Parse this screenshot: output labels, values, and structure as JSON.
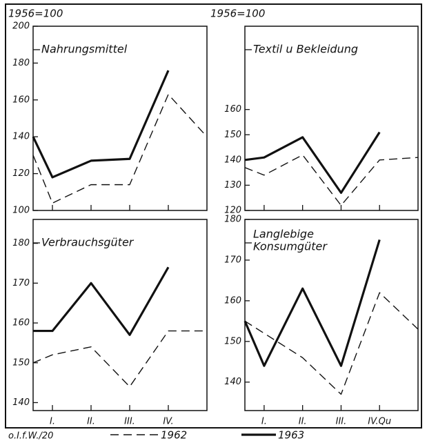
{
  "annotations": [
    "1956=100",
    "1956=100"
  ],
  "source": "o.I.f.W./20",
  "chart_data": [
    {
      "type": "line",
      "title": "Nahrungsmittel",
      "x": [
        0.5,
        1,
        2,
        3,
        4,
        5
      ],
      "xlim": [
        0.5,
        5
      ],
      "xticks": [
        1,
        2,
        3,
        4
      ],
      "ylim": [
        100,
        200
      ],
      "yticks": [
        100,
        120,
        140,
        160,
        180,
        200
      ],
      "series": [
        {
          "name": "1962",
          "color": "#111111",
          "values": [
            130,
            104,
            114,
            114,
            163,
            140
          ]
        },
        {
          "name": "1963",
          "color": "#111111",
          "values": [
            140,
            118,
            127,
            128,
            176,
            null
          ]
        }
      ]
    },
    {
      "type": "line",
      "title": "Textil u Bekleidung",
      "x": [
        0.5,
        1,
        2,
        3,
        4,
        5
      ],
      "xlim": [
        0.5,
        5
      ],
      "xticks": [
        1,
        2,
        3,
        4
      ],
      "ylim": [
        120,
        193
      ],
      "yticks": [
        120,
        130,
        140,
        150,
        160
      ],
      "series": [
        {
          "name": "1962",
          "color": "#111111",
          "values": [
            137,
            134,
            142,
            122,
            140,
            141
          ]
        },
        {
          "name": "1963",
          "color": "#111111",
          "values": [
            140,
            141,
            149,
            127,
            151,
            null
          ]
        }
      ]
    },
    {
      "type": "line",
      "title": "Verbrauchsgüter",
      "x": [
        0.5,
        1,
        2,
        3,
        4,
        5
      ],
      "xlim": [
        0.5,
        5
      ],
      "xticks": [
        {
          "value": 1,
          "label": "I."
        },
        {
          "value": 2,
          "label": "II."
        },
        {
          "value": 3,
          "label": "III."
        },
        {
          "value": 4,
          "label": "IV."
        }
      ],
      "ylim": [
        138,
        186
      ],
      "yticks": [
        140,
        150,
        160,
        170,
        180
      ],
      "series": [
        {
          "name": "1962",
          "color": "#111111",
          "values": [
            150,
            152,
            154,
            144,
            158,
            158
          ]
        },
        {
          "name": "1963",
          "color": "#111111",
          "values": [
            158,
            158,
            170,
            157,
            174,
            null
          ]
        }
      ]
    },
    {
      "type": "line",
      "title": [
        "Langlebige",
        "Konsumgüter"
      ],
      "x": [
        0.5,
        1,
        2,
        3,
        4,
        5
      ],
      "xlim": [
        0.5,
        5
      ],
      "xticks": [
        {
          "value": 1,
          "label": "I."
        },
        {
          "value": 2,
          "label": "II."
        },
        {
          "value": 3,
          "label": "III."
        },
        {
          "value": 4,
          "label": "IV.Qu"
        }
      ],
      "ylim": [
        133,
        180
      ],
      "yticks": [
        140,
        150,
        160,
        170,
        180
      ],
      "series": [
        {
          "name": "1962",
          "color": "#111111",
          "values": [
            155,
            152,
            146,
            137,
            162,
            153
          ]
        },
        {
          "name": "1963",
          "color": "#111111",
          "values": [
            155,
            144,
            163,
            144,
            175,
            null
          ]
        }
      ]
    }
  ]
}
